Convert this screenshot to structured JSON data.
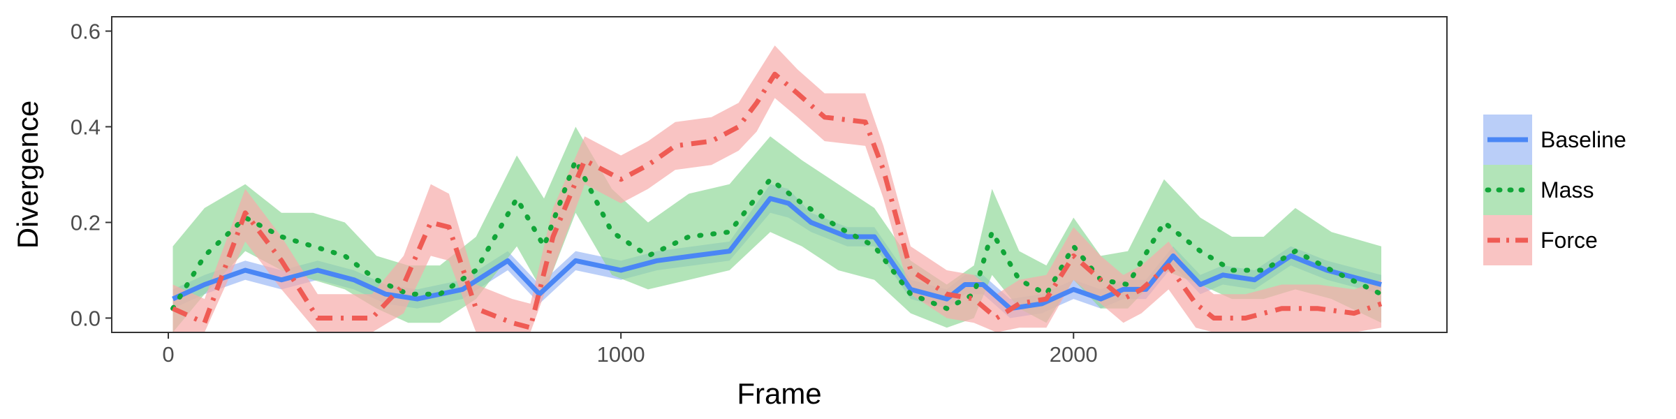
{
  "chart_data": {
    "type": "line",
    "xlabel": "Frame",
    "ylabel": "Divergence",
    "xlim": [
      -125,
      2825
    ],
    "ylim": [
      -0.03,
      0.63
    ],
    "xticks": [
      0,
      1000,
      2000
    ],
    "yticks": [
      0.0,
      0.2,
      0.4,
      0.6
    ],
    "xtick_labels": [
      "0",
      "1000",
      "2000"
    ],
    "ytick_labels": [
      "0.0",
      "0.2",
      "0.4",
      "0.6"
    ],
    "grid": false,
    "legend_position": "right",
    "series": [
      {
        "name": "Baseline",
        "color": "#4A86F5",
        "band_color": "#9CB9F5",
        "line_style": "solid",
        "x": [
          10,
          80,
          170,
          250,
          330,
          410,
          480,
          550,
          650,
          750,
          820,
          900,
          1000,
          1080,
          1160,
          1240,
          1330,
          1370,
          1420,
          1500,
          1560,
          1640,
          1720,
          1760,
          1800,
          1860,
          1930,
          2000,
          2060,
          2110,
          2160,
          2220,
          2280,
          2330,
          2400,
          2480,
          2560,
          2680
        ],
        "y": [
          0.04,
          0.07,
          0.1,
          0.08,
          0.1,
          0.08,
          0.05,
          0.04,
          0.06,
          0.12,
          0.05,
          0.12,
          0.1,
          0.12,
          0.13,
          0.14,
          0.25,
          0.24,
          0.2,
          0.17,
          0.17,
          0.06,
          0.04,
          0.07,
          0.07,
          0.02,
          0.03,
          0.06,
          0.04,
          0.06,
          0.06,
          0.13,
          0.07,
          0.09,
          0.08,
          0.13,
          0.1,
          0.07
        ],
        "lower": [
          0.02,
          0.05,
          0.08,
          0.06,
          0.08,
          0.06,
          0.03,
          0.02,
          0.04,
          0.1,
          0.03,
          0.1,
          0.08,
          0.1,
          0.11,
          0.12,
          0.22,
          0.21,
          0.18,
          0.15,
          0.15,
          0.04,
          0.02,
          0.05,
          0.05,
          0.0,
          0.01,
          0.04,
          0.02,
          0.04,
          0.04,
          0.11,
          0.05,
          0.07,
          0.06,
          0.11,
          0.08,
          0.05
        ],
        "upper": [
          0.06,
          0.09,
          0.12,
          0.1,
          0.12,
          0.1,
          0.07,
          0.06,
          0.08,
          0.14,
          0.07,
          0.14,
          0.12,
          0.14,
          0.15,
          0.16,
          0.28,
          0.27,
          0.22,
          0.19,
          0.19,
          0.08,
          0.06,
          0.09,
          0.09,
          0.04,
          0.05,
          0.08,
          0.06,
          0.08,
          0.08,
          0.15,
          0.09,
          0.11,
          0.1,
          0.15,
          0.12,
          0.09
        ]
      },
      {
        "name": "Mass",
        "color": "#11A538",
        "band_color": "#92D99A",
        "line_style": "dotted",
        "x": [
          10,
          80,
          170,
          250,
          320,
          390,
          460,
          530,
          600,
          680,
          770,
          830,
          900,
          980,
          1060,
          1150,
          1240,
          1330,
          1400,
          1480,
          1560,
          1640,
          1720,
          1780,
          1820,
          1880,
          1940,
          2000,
          2060,
          2120,
          2200,
          2280,
          2350,
          2420,
          2490,
          2570,
          2680
        ],
        "y": [
          0.02,
          0.13,
          0.21,
          0.17,
          0.15,
          0.13,
          0.08,
          0.05,
          0.05,
          0.1,
          0.25,
          0.15,
          0.33,
          0.18,
          0.13,
          0.17,
          0.18,
          0.29,
          0.24,
          0.19,
          0.15,
          0.05,
          0.02,
          0.05,
          0.18,
          0.08,
          0.05,
          0.15,
          0.08,
          0.07,
          0.2,
          0.14,
          0.1,
          0.1,
          0.14,
          0.1,
          0.05
        ],
        "lower": [
          -0.03,
          0.05,
          0.14,
          0.1,
          0.08,
          0.06,
          0.02,
          -0.01,
          -0.01,
          0.04,
          0.15,
          0.05,
          0.22,
          0.09,
          0.06,
          0.08,
          0.1,
          0.18,
          0.15,
          0.1,
          0.08,
          0.01,
          -0.02,
          0.0,
          0.09,
          0.02,
          -0.01,
          0.08,
          0.02,
          0.02,
          0.1,
          0.07,
          0.04,
          0.04,
          0.06,
          0.04,
          -0.01
        ],
        "upper": [
          0.15,
          0.23,
          0.28,
          0.22,
          0.22,
          0.2,
          0.13,
          0.11,
          0.11,
          0.17,
          0.34,
          0.25,
          0.4,
          0.27,
          0.2,
          0.26,
          0.28,
          0.38,
          0.33,
          0.28,
          0.23,
          0.12,
          0.07,
          0.11,
          0.27,
          0.14,
          0.11,
          0.21,
          0.13,
          0.14,
          0.29,
          0.21,
          0.17,
          0.17,
          0.23,
          0.18,
          0.15
        ]
      },
      {
        "name": "Force",
        "color": "#EF5B54",
        "band_color": "#F7ABA9",
        "line_style": "dashdot",
        "x": [
          10,
          80,
          170,
          250,
          330,
          390,
          450,
          520,
          580,
          620,
          680,
          760,
          800,
          850,
          920,
          1000,
          1060,
          1120,
          1200,
          1260,
          1300,
          1340,
          1390,
          1450,
          1540,
          1580,
          1640,
          1720,
          1780,
          1830,
          1880,
          1940,
          2000,
          2060,
          2110,
          2150,
          2210,
          2270,
          2310,
          2380,
          2460,
          2540,
          2620,
          2680
        ],
        "y": [
          0.02,
          -0.01,
          0.22,
          0.12,
          0.0,
          0.0,
          0.0,
          0.07,
          0.2,
          0.19,
          0.02,
          -0.01,
          -0.02,
          0.17,
          0.33,
          0.29,
          0.32,
          0.36,
          0.37,
          0.4,
          0.45,
          0.51,
          0.47,
          0.42,
          0.41,
          0.31,
          0.1,
          0.05,
          0.04,
          0.0,
          0.03,
          0.04,
          0.13,
          0.08,
          0.04,
          0.06,
          0.11,
          0.03,
          0.0,
          0.0,
          0.02,
          0.02,
          0.01,
          0.03
        ],
        "lower": [
          -0.03,
          -0.03,
          0.16,
          0.06,
          -0.03,
          -0.03,
          -0.03,
          0.01,
          0.13,
          0.12,
          -0.03,
          -0.03,
          -0.03,
          0.1,
          0.28,
          0.24,
          0.27,
          0.31,
          0.32,
          0.35,
          0.39,
          0.46,
          0.42,
          0.37,
          0.36,
          0.25,
          0.05,
          0.0,
          -0.01,
          -0.03,
          -0.02,
          -0.02,
          0.08,
          0.03,
          -0.01,
          0.01,
          0.06,
          -0.02,
          -0.03,
          -0.03,
          -0.03,
          -0.03,
          -0.03,
          -0.02
        ],
        "upper": [
          0.07,
          0.04,
          0.27,
          0.17,
          0.05,
          0.05,
          0.05,
          0.13,
          0.28,
          0.26,
          0.07,
          0.04,
          0.03,
          0.23,
          0.38,
          0.34,
          0.37,
          0.41,
          0.42,
          0.45,
          0.51,
          0.57,
          0.52,
          0.47,
          0.47,
          0.36,
          0.15,
          0.1,
          0.09,
          0.05,
          0.08,
          0.09,
          0.19,
          0.13,
          0.09,
          0.11,
          0.16,
          0.08,
          0.05,
          0.05,
          0.07,
          0.07,
          0.06,
          0.08
        ]
      }
    ]
  }
}
